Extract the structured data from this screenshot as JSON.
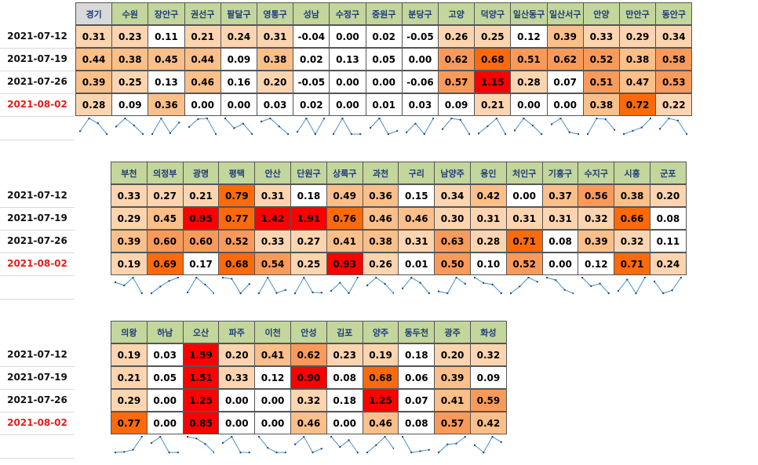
{
  "dates": [
    "2021-07-12",
    "2021-07-19",
    "2021-07-26",
    "2021-08-02"
  ],
  "tables": [
    {
      "columns": [
        "경기",
        "수원",
        "장안구",
        "권선구",
        "팔달구",
        "영통구",
        "성남",
        "수정구",
        "중원구",
        "분당구",
        "고양",
        "덕양구",
        "일산동구",
        "일산서구",
        "안양",
        "만안구",
        "동안구"
      ],
      "rows": [
        [
          "0.31",
          "0.23",
          "0.11",
          "0.21",
          "0.24",
          "0.31",
          "-0.04",
          "0.00",
          "0.02",
          "-0.05",
          "0.26",
          "0.25",
          "0.12",
          "0.39",
          "0.33",
          "0.29",
          "0.34"
        ],
        [
          "0.44",
          "0.38",
          "0.45",
          "0.44",
          "0.09",
          "0.38",
          "0.02",
          "0.13",
          "0.05",
          "0.00",
          "0.62",
          "0.68",
          "0.51",
          "0.62",
          "0.52",
          "0.38",
          "0.58"
        ],
        [
          "0.39",
          "0.25",
          "0.13",
          "0.46",
          "0.16",
          "0.20",
          "-0.05",
          "0.00",
          "0.00",
          "-0.06",
          "0.57",
          "1.15",
          "0.28",
          "0.07",
          "0.51",
          "0.47",
          "0.53"
        ],
        [
          "0.28",
          "0.09",
          "0.36",
          "0.00",
          "0.00",
          "0.03",
          "0.02",
          "0.00",
          "0.01",
          "0.03",
          "0.09",
          "0.21",
          "0.00",
          "0.00",
          "0.38",
          "0.72",
          "0.22"
        ]
      ]
    },
    {
      "columns": [
        "부천",
        "의정부",
        "광명",
        "평택",
        "안산",
        "단원구",
        "상록구",
        "과천",
        "구리",
        "남양주",
        "용인",
        "처인구",
        "기흥구",
        "수지구",
        "시흥",
        "군포"
      ],
      "rows": [
        [
          "0.33",
          "0.27",
          "0.21",
          "0.79",
          "0.31",
          "0.18",
          "0.49",
          "0.36",
          "0.15",
          "0.34",
          "0.42",
          "0.00",
          "0.37",
          "0.56",
          "0.38",
          "0.20"
        ],
        [
          "0.29",
          "0.45",
          "0.95",
          "0.77",
          "1.42",
          "1.91",
          "0.76",
          "0.46",
          "0.46",
          "0.30",
          "0.31",
          "0.31",
          "0.31",
          "0.32",
          "0.66",
          "0.08"
        ],
        [
          "0.39",
          "0.60",
          "0.60",
          "0.52",
          "0.33",
          "0.27",
          "0.41",
          "0.38",
          "0.31",
          "0.63",
          "0.28",
          "0.71",
          "0.08",
          "0.39",
          "0.32",
          "0.11"
        ],
        [
          "0.19",
          "0.69",
          "0.17",
          "0.68",
          "0.54",
          "0.25",
          "0.93",
          "0.26",
          "0.01",
          "0.50",
          "0.10",
          "0.52",
          "0.00",
          "0.12",
          "0.71",
          "0.24"
        ]
      ]
    },
    {
      "columns": [
        "의왕",
        "하남",
        "오산",
        "파주",
        "이천",
        "안성",
        "김포",
        "양주",
        "동두천",
        "광주",
        "화성"
      ],
      "rows": [
        [
          "0.19",
          "0.03",
          "1.59",
          "0.20",
          "0.41",
          "0.62",
          "0.23",
          "0.19",
          "0.18",
          "0.20",
          "0.32"
        ],
        [
          "0.21",
          "0.05",
          "1.51",
          "0.33",
          "0.12",
          "0.90",
          "0.08",
          "0.68",
          "0.06",
          "0.39",
          "0.09"
        ],
        [
          "0.29",
          "0.00",
          "1.25",
          "0.00",
          "0.00",
          "0.32",
          "0.18",
          "1.25",
          "0.07",
          "0.41",
          "0.59"
        ],
        [
          "0.77",
          "0.00",
          "0.85",
          "0.00",
          "0.00",
          "0.46",
          "0.00",
          "0.46",
          "0.08",
          "0.57",
          "0.42"
        ]
      ]
    }
  ],
  "colors": {
    "header_bg": "#c3d69b",
    "header_first_bg": "#d9d9d9",
    "header_text": "#1f3b7a",
    "latest_date_text": "#e02020",
    "sparkline": "#4a90c8"
  }
}
